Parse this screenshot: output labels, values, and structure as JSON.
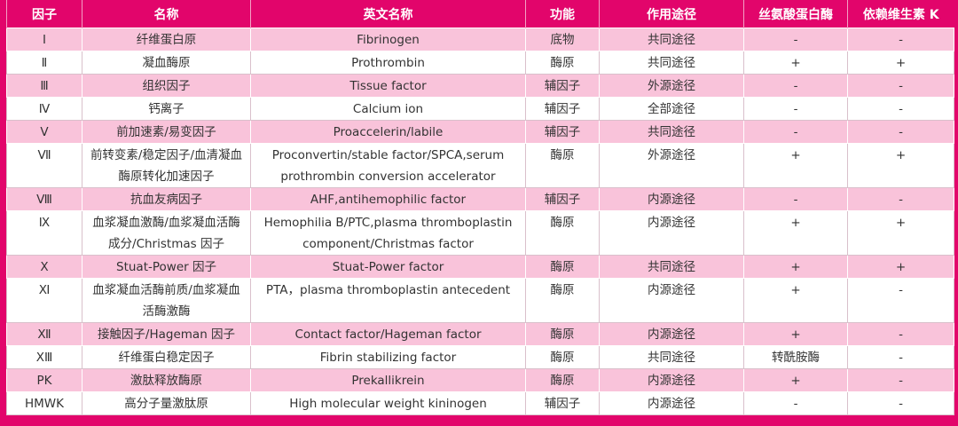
{
  "table": {
    "header": [
      "因子",
      "名称",
      "英文名称",
      "功能",
      "作用途径",
      "丝氨酸蛋白酶",
      "依赖维生素 K"
    ],
    "rows": [
      [
        "Ⅰ",
        "纤维蛋白原",
        "Fibrinogen",
        "底物",
        "共同途径",
        "-",
        "-"
      ],
      [
        "Ⅱ",
        "凝血酶原",
        "Prothrombin",
        "酶原",
        "共同途径",
        "+",
        "+"
      ],
      [
        "Ⅲ",
        "组织因子",
        "Tissue factor",
        "辅因子",
        "外源途径",
        "-",
        "-"
      ],
      [
        "Ⅳ",
        "钙离子",
        "Calcium ion",
        "辅因子",
        "全部途径",
        "-",
        "-"
      ],
      [
        "Ⅴ",
        "前加速素/易变因子",
        "Proaccelerin/labile",
        "辅因子",
        "共同途径",
        "-",
        "-"
      ],
      [
        "Ⅶ",
        "前转变素/稳定因子/血清凝血酶原转化加速因子",
        "Proconvertin/stable factor/SPCA,serum prothrombin conversion accelerator",
        "酶原",
        "外源途径",
        "+",
        "+"
      ],
      [
        "Ⅷ",
        "抗血友病因子",
        "AHF,antihemophilic factor",
        "辅因子",
        "内源途径",
        "-",
        "-"
      ],
      [
        "Ⅸ",
        "血浆凝血激酶/血浆凝血活酶成分/Christmas 因子",
        "Hemophilia B/PTC,plasma thromboplastin component/Christmas factor",
        "酶原",
        "内源途径",
        "+",
        "+"
      ],
      [
        "Ⅹ",
        "Stuat-Power 因子",
        "Stuat-Power factor",
        "酶原",
        "共同途径",
        "+",
        "+"
      ],
      [
        "Ⅺ",
        "血浆凝血活酶前质/血浆凝血活酶激酶",
        "PTA，plasma thromboplastin antecedent",
        "酶原",
        "内源途径",
        "+",
        "-"
      ],
      [
        "Ⅻ",
        "接触因子/Hageman 因子",
        "Contact factor/Hageman factor",
        "酶原",
        "内源途径",
        "+",
        "-"
      ],
      [
        "XⅢ",
        "纤维蛋白稳定因子",
        "Fibrin stabilizing factor",
        "酶原",
        "共同途径",
        "转酰胺酶",
        "-"
      ],
      [
        "PK",
        "激肽释放酶原",
        "Prekallikrein",
        "酶原",
        "内源途径",
        "+",
        "-"
      ],
      [
        "HMWK",
        "高分子量激肽原",
        "High molecular weight kininogen",
        "辅因子",
        "内源途径",
        "-",
        "-"
      ]
    ]
  }
}
